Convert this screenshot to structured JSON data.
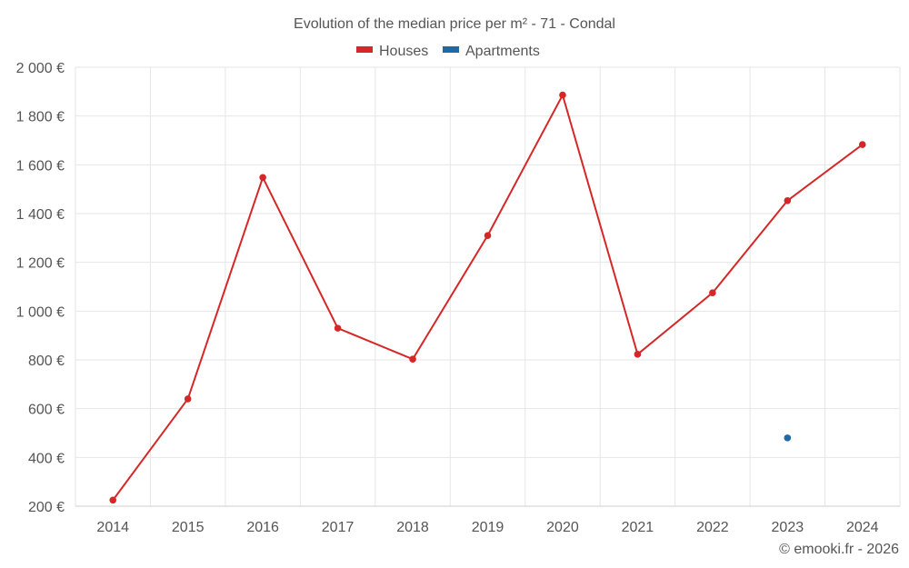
{
  "chart_data": {
    "type": "line",
    "title": "Evolution of the median price per m² - 71 - Condal",
    "x": [
      "2014",
      "2015",
      "2016",
      "2017",
      "2018",
      "2019",
      "2020",
      "2021",
      "2022",
      "2023",
      "2024"
    ],
    "ylim": [
      200,
      2000
    ],
    "yticks": [
      200,
      400,
      600,
      800,
      1000,
      1200,
      1400,
      1600,
      1800,
      2000
    ],
    "ytick_labels": [
      "200 €",
      "400 €",
      "600 €",
      "800 €",
      "1 000 €",
      "1 200 €",
      "1 400 €",
      "1 600 €",
      "1 800 €",
      "2 000 €"
    ],
    "grid": true,
    "legend_position": "top-center",
    "series": [
      {
        "name": "Houses",
        "color": "#d62728",
        "values": [
          225,
          640,
          1548,
          930,
          803,
          1310,
          1886,
          823,
          1075,
          1453,
          1683
        ]
      },
      {
        "name": "Apartments",
        "color": "#1f6aa5",
        "values": [
          null,
          null,
          null,
          null,
          null,
          null,
          null,
          null,
          null,
          480,
          null
        ]
      }
    ]
  },
  "credit": "© emooki.fr - 2026"
}
